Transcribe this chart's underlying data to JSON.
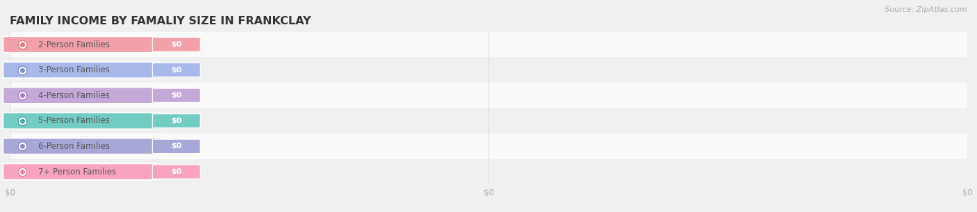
{
  "title": "FAMILY INCOME BY FAMALIY SIZE IN FRANKCLAY",
  "source": "Source: ZipAtlas.com",
  "categories": [
    "2-Person Families",
    "3-Person Families",
    "4-Person Families",
    "5-Person Families",
    "6-Person Families",
    "7+ Person Families"
  ],
  "values": [
    0,
    0,
    0,
    0,
    0,
    0
  ],
  "bar_colors": [
    "#f2a0aa",
    "#a8b8ea",
    "#c4a8d8",
    "#72ccc4",
    "#a8a8d8",
    "#f8a4be"
  ],
  "dot_colors": [
    "#e07880",
    "#8090cc",
    "#a880be",
    "#50a8a4",
    "#8888c4",
    "#f080a0"
  ],
  "background_color": "#f0f0f0",
  "row_bg_color": "#fafafa",
  "row_alt_color": "#f0f0f0",
  "tick_label_color": "#aaaaaa",
  "title_color": "#333333",
  "source_color": "#aaaaaa",
  "grid_color": "#dddddd",
  "title_fontsize": 11.5,
  "label_fontsize": 8.5,
  "tick_fontsize": 8.5,
  "source_fontsize": 8.0,
  "n_xticks": 3,
  "xtick_labels": [
    "$0",
    "$0",
    "$0"
  ],
  "xtick_positions": [
    0.0,
    0.5,
    1.0
  ]
}
